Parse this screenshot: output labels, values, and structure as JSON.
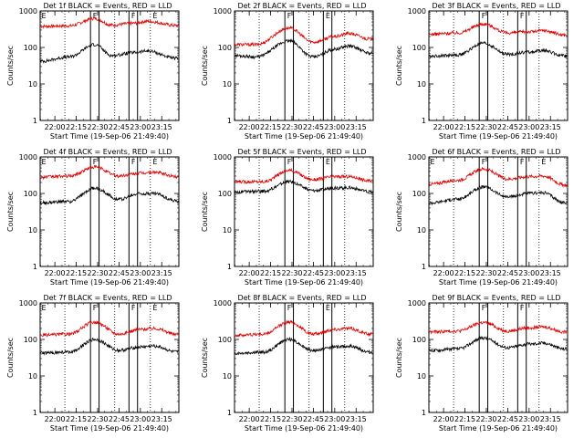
{
  "figure": {
    "colors": {
      "events": "#000000",
      "lld": "#e00000",
      "axes": "#000000",
      "background": "#ffffff"
    },
    "start_label": "Start Time (19-Sep-06 21:49:40)",
    "ylabel": "Counts/sec",
    "xtick_labels": [
      "22:00",
      "22:15",
      "22:30",
      "22:45",
      "23:00",
      "23:15"
    ],
    "ytick_labels": [
      "1",
      "10",
      "100",
      "1000"
    ],
    "event_markers": [
      "E",
      "F",
      "F",
      "E"
    ]
  },
  "chart_data": [
    {
      "type": "line",
      "title": "Det 1f BLACK = Events, RED = LLD",
      "xlabel": "Start Time (19-Sep-06 21:49:40)",
      "ylabel": "Counts/sec",
      "yscale": "log",
      "ylim": [
        1,
        1000
      ],
      "xlim": [
        "21:49:40",
        "23:27:00"
      ],
      "dotted_lines": [
        "22:07",
        "22:42",
        "23:07"
      ],
      "solid_lines": [
        "22:25",
        "22:31",
        "22:52",
        "22:58"
      ],
      "markers": [
        {
          "label": "E",
          "time": "21:50"
        },
        {
          "label": "F",
          "time": "22:26"
        },
        {
          "label": "F",
          "time": "22:53"
        },
        {
          "label": "E",
          "time": "23:08"
        }
      ],
      "series": [
        {
          "color": "red",
          "values": [
            {
              "x": "21:50",
              "y": 380
            },
            {
              "x": "22:10",
              "y": 390
            },
            {
              "x": "22:28",
              "y": 620
            },
            {
              "x": "22:40",
              "y": 410
            },
            {
              "x": "22:55",
              "y": 460
            },
            {
              "x": "23:05",
              "y": 520
            },
            {
              "x": "23:25",
              "y": 400
            }
          ]
        },
        {
          "color": "black",
          "values": [
            {
              "x": "21:50",
              "y": 42
            },
            {
              "x": "22:10",
              "y": 55
            },
            {
              "x": "22:28",
              "y": 120
            },
            {
              "x": "22:40",
              "y": 60
            },
            {
              "x": "22:55",
              "y": 72
            },
            {
              "x": "23:05",
              "y": 80
            },
            {
              "x": "23:25",
              "y": 50
            }
          ]
        }
      ]
    },
    {
      "type": "line",
      "title": "Det 2f BLACK = Events, RED = LLD",
      "xlabel": "Start Time (19-Sep-06 21:49:40)",
      "ylabel": "Counts/sec",
      "yscale": "log",
      "ylim": [
        1,
        1000
      ],
      "xlim": [
        "21:49:40",
        "23:27:00"
      ],
      "dotted_lines": [
        "22:07",
        "22:42",
        "23:07"
      ],
      "solid_lines": [
        "22:25",
        "22:31",
        "22:52",
        "22:58"
      ],
      "markers": [
        {
          "label": "F",
          "time": "22:26"
        },
        {
          "label": "E",
          "time": "22:53"
        }
      ],
      "series": [
        {
          "color": "red",
          "values": [
            {
              "x": "21:50",
              "y": 120
            },
            {
              "x": "22:05",
              "y": 120
            },
            {
              "x": "22:28",
              "y": 340
            },
            {
              "x": "22:45",
              "y": 140
            },
            {
              "x": "23:00",
              "y": 200
            },
            {
              "x": "23:10",
              "y": 240
            },
            {
              "x": "23:25",
              "y": 170
            }
          ]
        },
        {
          "color": "black",
          "values": [
            {
              "x": "21:50",
              "y": 60
            },
            {
              "x": "22:05",
              "y": 55
            },
            {
              "x": "22:28",
              "y": 150
            },
            {
              "x": "22:45",
              "y": 55
            },
            {
              "x": "23:00",
              "y": 90
            },
            {
              "x": "23:10",
              "y": 110
            },
            {
              "x": "23:25",
              "y": 70
            }
          ]
        }
      ]
    },
    {
      "type": "line",
      "title": "Det 3f BLACK = Events, RED = LLD",
      "xlabel": "Start Time (19-Sep-06 21:49:40)",
      "ylabel": "Counts/sec",
      "yscale": "log",
      "ylim": [
        1,
        1000
      ],
      "xlim": [
        "21:49:40",
        "23:27:00"
      ],
      "dotted_lines": [
        "22:07",
        "22:42",
        "23:07"
      ],
      "solid_lines": [
        "22:25",
        "22:31",
        "22:52",
        "22:58"
      ],
      "markers": [
        {
          "label": "F",
          "time": "22:26"
        },
        {
          "label": "F",
          "time": "22:53"
        }
      ],
      "series": [
        {
          "color": "red",
          "values": [
            {
              "x": "21:50",
              "y": 230
            },
            {
              "x": "22:10",
              "y": 250
            },
            {
              "x": "22:28",
              "y": 440
            },
            {
              "x": "22:45",
              "y": 250
            },
            {
              "x": "23:00",
              "y": 270
            },
            {
              "x": "23:10",
              "y": 290
            },
            {
              "x": "23:25",
              "y": 220
            }
          ]
        },
        {
          "color": "black",
          "values": [
            {
              "x": "21:50",
              "y": 58
            },
            {
              "x": "22:10",
              "y": 62
            },
            {
              "x": "22:28",
              "y": 130
            },
            {
              "x": "22:45",
              "y": 65
            },
            {
              "x": "23:00",
              "y": 75
            },
            {
              "x": "23:10",
              "y": 82
            },
            {
              "x": "23:25",
              "y": 58
            }
          ]
        }
      ]
    },
    {
      "type": "line",
      "title": "Det 4f BLACK = Events, RED = LLD",
      "xlabel": "Start Time (19-Sep-06 21:49:40)",
      "ylabel": "Counts/sec",
      "yscale": "log",
      "ylim": [
        1,
        1000
      ],
      "xlim": [
        "21:49:40",
        "23:27:00"
      ],
      "dotted_lines": [
        "22:07",
        "22:42",
        "23:07"
      ],
      "solid_lines": [
        "22:25",
        "22:31",
        "22:52",
        "22:58"
      ],
      "markers": [
        {
          "label": "E",
          "time": "21:50"
        },
        {
          "label": "F",
          "time": "22:26"
        },
        {
          "label": "F",
          "time": "22:53"
        },
        {
          "label": "E",
          "time": "23:08"
        }
      ],
      "series": [
        {
          "color": "red",
          "values": [
            {
              "x": "21:50",
              "y": 280
            },
            {
              "x": "22:10",
              "y": 300
            },
            {
              "x": "22:28",
              "y": 530
            },
            {
              "x": "22:45",
              "y": 300
            },
            {
              "x": "23:00",
              "y": 360
            },
            {
              "x": "23:10",
              "y": 380
            },
            {
              "x": "23:25",
              "y": 290
            }
          ]
        },
        {
          "color": "black",
          "values": [
            {
              "x": "21:50",
              "y": 55
            },
            {
              "x": "22:10",
              "y": 60
            },
            {
              "x": "22:28",
              "y": 140
            },
            {
              "x": "22:45",
              "y": 70
            },
            {
              "x": "23:00",
              "y": 100
            },
            {
              "x": "23:10",
              "y": 100
            },
            {
              "x": "23:25",
              "y": 62
            }
          ]
        }
      ]
    },
    {
      "type": "line",
      "title": "Det 5f BLACK = Events, RED = LLD",
      "xlabel": "Start Time (19-Sep-06 21:49:40)",
      "ylabel": "Counts/sec",
      "yscale": "log",
      "ylim": [
        1,
        1000
      ],
      "xlim": [
        "21:49:40",
        "23:27:00"
      ],
      "dotted_lines": [
        "22:07",
        "22:42",
        "23:07"
      ],
      "solid_lines": [
        "22:25",
        "22:31",
        "22:52",
        "22:58"
      ],
      "markers": [
        {
          "label": "F",
          "time": "22:26"
        },
        {
          "label": "E",
          "time": "22:53"
        }
      ],
      "series": [
        {
          "color": "red",
          "values": [
            {
              "x": "21:50",
              "y": 210
            },
            {
              "x": "22:10",
              "y": 210
            },
            {
              "x": "22:28",
              "y": 430
            },
            {
              "x": "22:45",
              "y": 240
            },
            {
              "x": "23:00",
              "y": 290
            },
            {
              "x": "23:10",
              "y": 290
            },
            {
              "x": "23:25",
              "y": 220
            }
          ]
        },
        {
          "color": "black",
          "values": [
            {
              "x": "21:50",
              "y": 110
            },
            {
              "x": "22:10",
              "y": 115
            },
            {
              "x": "22:28",
              "y": 210
            },
            {
              "x": "22:45",
              "y": 120
            },
            {
              "x": "23:00",
              "y": 140
            },
            {
              "x": "23:10",
              "y": 145
            },
            {
              "x": "23:25",
              "y": 110
            }
          ]
        }
      ]
    },
    {
      "type": "line",
      "title": "Det 6f BLACK = Events, RED = LLD",
      "xlabel": "Start Time (19-Sep-06 21:49:40)",
      "ylabel": "Counts/sec",
      "yscale": "log",
      "ylim": [
        1,
        1000
      ],
      "xlim": [
        "21:49:40",
        "23:27:00"
      ],
      "dotted_lines": [
        "22:07",
        "22:42",
        "23:07"
      ],
      "solid_lines": [
        "22:25",
        "22:31",
        "22:52",
        "22:58"
      ],
      "markers": [
        {
          "label": "E",
          "time": "21:50"
        },
        {
          "label": "F",
          "time": "22:26"
        },
        {
          "label": "F",
          "time": "22:53"
        },
        {
          "label": "E",
          "time": "23:08"
        }
      ],
      "series": [
        {
          "color": "red",
          "values": [
            {
              "x": "21:50",
              "y": 180
            },
            {
              "x": "22:10",
              "y": 230
            },
            {
              "x": "22:28",
              "y": 470
            },
            {
              "x": "22:45",
              "y": 250
            },
            {
              "x": "23:00",
              "y": 290
            },
            {
              "x": "23:10",
              "y": 300
            },
            {
              "x": "23:25",
              "y": 170
            }
          ]
        },
        {
          "color": "black",
          "values": [
            {
              "x": "21:50",
              "y": 55
            },
            {
              "x": "22:10",
              "y": 70
            },
            {
              "x": "22:28",
              "y": 150
            },
            {
              "x": "22:45",
              "y": 80
            },
            {
              "x": "23:00",
              "y": 100
            },
            {
              "x": "23:10",
              "y": 105
            },
            {
              "x": "23:25",
              "y": 55
            }
          ]
        }
      ]
    },
    {
      "type": "line",
      "title": "Det 7f BLACK = Events, RED = LLD",
      "xlabel": "Start Time (19-Sep-06 21:49:40)",
      "ylabel": "Counts/sec",
      "yscale": "log",
      "ylim": [
        1,
        1000
      ],
      "xlim": [
        "21:49:40",
        "23:27:00"
      ],
      "dotted_lines": [
        "22:07",
        "22:42",
        "23:07"
      ],
      "solid_lines": [
        "22:25",
        "22:31",
        "22:52",
        "22:58"
      ],
      "markers": [
        {
          "label": "E",
          "time": "21:50"
        },
        {
          "label": "F",
          "time": "22:26"
        },
        {
          "label": "F",
          "time": "22:53"
        },
        {
          "label": "E",
          "time": "23:08"
        }
      ],
      "series": [
        {
          "color": "red",
          "values": [
            {
              "x": "21:50",
              "y": 130
            },
            {
              "x": "22:10",
              "y": 140
            },
            {
              "x": "22:28",
              "y": 300
            },
            {
              "x": "22:45",
              "y": 140
            },
            {
              "x": "23:00",
              "y": 190
            },
            {
              "x": "23:10",
              "y": 200
            },
            {
              "x": "23:25",
              "y": 140
            }
          ]
        },
        {
          "color": "black",
          "values": [
            {
              "x": "21:50",
              "y": 42
            },
            {
              "x": "22:10",
              "y": 45
            },
            {
              "x": "22:28",
              "y": 100
            },
            {
              "x": "22:45",
              "y": 50
            },
            {
              "x": "23:00",
              "y": 62
            },
            {
              "x": "23:10",
              "y": 66
            },
            {
              "x": "23:25",
              "y": 45
            }
          ]
        }
      ]
    },
    {
      "type": "line",
      "title": "Det 8f BLACK = Events, RED = LLD",
      "xlabel": "Start Time (19-Sep-06 21:49:40)",
      "ylabel": "Counts/sec",
      "yscale": "log",
      "ylim": [
        1,
        1000
      ],
      "xlim": [
        "21:49:40",
        "23:27:00"
      ],
      "dotted_lines": [
        "22:07",
        "22:42",
        "23:07"
      ],
      "solid_lines": [
        "22:25",
        "22:31",
        "22:52",
        "22:58"
      ],
      "markers": [
        {
          "label": "F",
          "time": "22:26"
        },
        {
          "label": "E",
          "time": "22:53"
        }
      ],
      "series": [
        {
          "color": "red",
          "values": [
            {
              "x": "21:50",
              "y": 130
            },
            {
              "x": "22:10",
              "y": 140
            },
            {
              "x": "22:28",
              "y": 300
            },
            {
              "x": "22:45",
              "y": 140
            },
            {
              "x": "23:00",
              "y": 190
            },
            {
              "x": "23:10",
              "y": 200
            },
            {
              "x": "23:25",
              "y": 140
            }
          ]
        },
        {
          "color": "black",
          "values": [
            {
              "x": "21:50",
              "y": 42
            },
            {
              "x": "22:10",
              "y": 45
            },
            {
              "x": "22:28",
              "y": 100
            },
            {
              "x": "22:45",
              "y": 50
            },
            {
              "x": "23:00",
              "y": 62
            },
            {
              "x": "23:10",
              "y": 66
            },
            {
              "x": "23:25",
              "y": 45
            }
          ]
        }
      ]
    },
    {
      "type": "line",
      "title": "Det 9f BLACK = Events, RED = LLD",
      "xlabel": "Start Time (19-Sep-06 21:49:40)",
      "ylabel": "Counts/sec",
      "yscale": "log",
      "ylim": [
        1,
        1000
      ],
      "xlim": [
        "21:49:40",
        "23:27:00"
      ],
      "dotted_lines": [
        "22:07",
        "22:42",
        "23:07"
      ],
      "solid_lines": [
        "22:25",
        "22:31",
        "22:52",
        "22:58"
      ],
      "markers": [
        {
          "label": "F",
          "time": "22:26"
        },
        {
          "label": "F",
          "time": "22:53"
        }
      ],
      "series": [
        {
          "color": "red",
          "values": [
            {
              "x": "21:50",
              "y": 160
            },
            {
              "x": "22:10",
              "y": 170
            },
            {
              "x": "22:28",
              "y": 290
            },
            {
              "x": "22:45",
              "y": 170
            },
            {
              "x": "23:00",
              "y": 210
            },
            {
              "x": "23:10",
              "y": 220
            },
            {
              "x": "23:25",
              "y": 160
            }
          ]
        },
        {
          "color": "black",
          "values": [
            {
              "x": "21:50",
              "y": 50
            },
            {
              "x": "22:10",
              "y": 55
            },
            {
              "x": "22:28",
              "y": 110
            },
            {
              "x": "22:45",
              "y": 60
            },
            {
              "x": "23:00",
              "y": 75
            },
            {
              "x": "23:10",
              "y": 80
            },
            {
              "x": "23:25",
              "y": 55
            }
          ]
        }
      ]
    }
  ]
}
